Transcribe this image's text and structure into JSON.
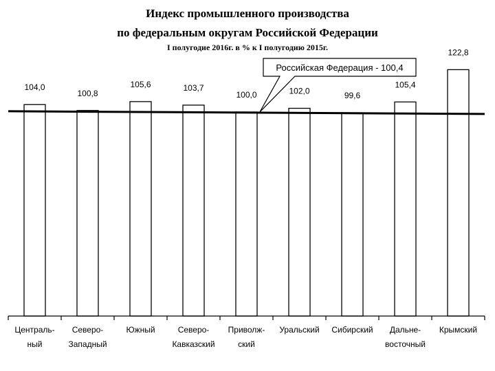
{
  "chart_data": {
    "type": "bar",
    "title": "Индекс промышленного производства",
    "subtitle_line": "по федеральным округам Российской Федерации",
    "subtitle": "I полугодие 2016г. в % к I полугодию 2015г.",
    "categories": [
      [
        "Централь-",
        "ный"
      ],
      [
        "Северо-",
        "Западный"
      ],
      [
        "Южный"
      ],
      [
        "Северо-",
        "Кавказский"
      ],
      [
        "Приволж-",
        "ский"
      ],
      [
        "Уральский"
      ],
      [
        "Сибирский"
      ],
      [
        "Дальне-",
        "восточный"
      ],
      [
        "Крымский"
      ]
    ],
    "values": [
      104.0,
      100.8,
      105.6,
      103.7,
      100.0,
      102.0,
      99.6,
      105.4,
      122.8
    ],
    "value_labels": [
      "104,0",
      "100,8",
      "105,6",
      "103,7",
      "100,0",
      "102,0",
      "99,6",
      "105,4",
      "122,8"
    ],
    "reference": {
      "value": 100.4,
      "label": "Российская Федерация - 100,4"
    },
    "ylim": [
      0,
      123
    ],
    "xlabel": "",
    "ylabel": "",
    "grid": false,
    "colors": {
      "bar_fill": "#ffffff",
      "bar_stroke": "#000000",
      "reference_line": "#000000"
    }
  }
}
